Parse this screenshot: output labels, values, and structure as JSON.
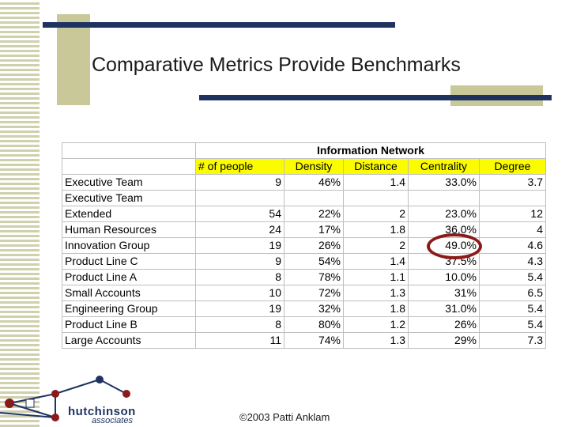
{
  "slide": {
    "title": "Comparative Metrics Provide Benchmarks",
    "footer": "©2003 Patti Anklam",
    "logo": {
      "name": "hutchinson",
      "sub": "associates"
    }
  },
  "table": {
    "group_header": "Information Network",
    "columns": [
      "# of people",
      "Density",
      "Distance",
      "Centrality",
      "Degree"
    ],
    "rows": [
      {
        "name": "Executive Team",
        "people": "9",
        "density": "46%",
        "distance": "1.4",
        "centrality": "33.0%",
        "degree": "3.7"
      },
      {
        "name": "Executive Team",
        "people": "",
        "density": "",
        "distance": "",
        "centrality": "",
        "degree": ""
      },
      {
        "name": "Extended",
        "people": "54",
        "density": "22%",
        "distance": "2",
        "centrality": "23.0%",
        "degree": "12"
      },
      {
        "name": "Human Resources",
        "people": "24",
        "density": "17%",
        "distance": "1.8",
        "centrality": "36.0%",
        "degree": "4"
      },
      {
        "name": "Innovation Group",
        "people": "19",
        "density": "26%",
        "distance": "2",
        "centrality": "49.0%",
        "degree": "4.6"
      },
      {
        "name": "Product Line C",
        "people": "9",
        "density": "54%",
        "distance": "1.4",
        "centrality": "37.5%",
        "degree": "4.3"
      },
      {
        "name": "Product Line A",
        "people": "8",
        "density": "78%",
        "distance": "1.1",
        "centrality": "10.0%",
        "degree": "5.4"
      },
      {
        "name": "Small Accounts",
        "people": "10",
        "density": "72%",
        "distance": "1.3",
        "centrality": "31%",
        "degree": "6.5"
      },
      {
        "name": "Engineering Group",
        "people": "19",
        "density": "32%",
        "distance": "1.8",
        "centrality": "31.0%",
        "degree": "5.4"
      },
      {
        "name": "Product Line B",
        "people": "8",
        "density": "80%",
        "distance": "1.2",
        "centrality": "26%",
        "degree": "5.4"
      },
      {
        "name": "Large Accounts",
        "people": "11",
        "density": "74%",
        "distance": "1.3",
        "centrality": "29%",
        "degree": "7.3"
      }
    ]
  },
  "colors": {
    "accent_bar": "#1f3361",
    "olive": "#c8c898",
    "header_highlight": "#fcfc00",
    "circle": "#8b1a1a"
  }
}
